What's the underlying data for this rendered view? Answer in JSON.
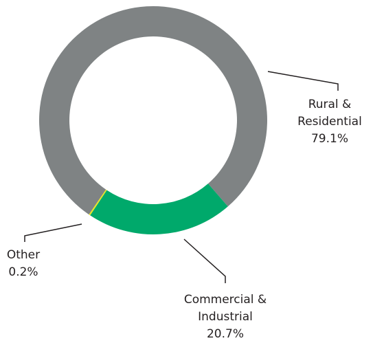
{
  "chart_data": {
    "type": "pie",
    "categories": [
      "Rural & Residential",
      "Commercial & Industrial",
      "Other"
    ],
    "values": [
      79.1,
      20.7,
      0.2
    ],
    "value_labels": [
      "79.1%",
      "20.7%",
      "0.2%"
    ],
    "colors": [
      "#7f8384",
      "#00a96b",
      "#e8e61e"
    ]
  }
}
